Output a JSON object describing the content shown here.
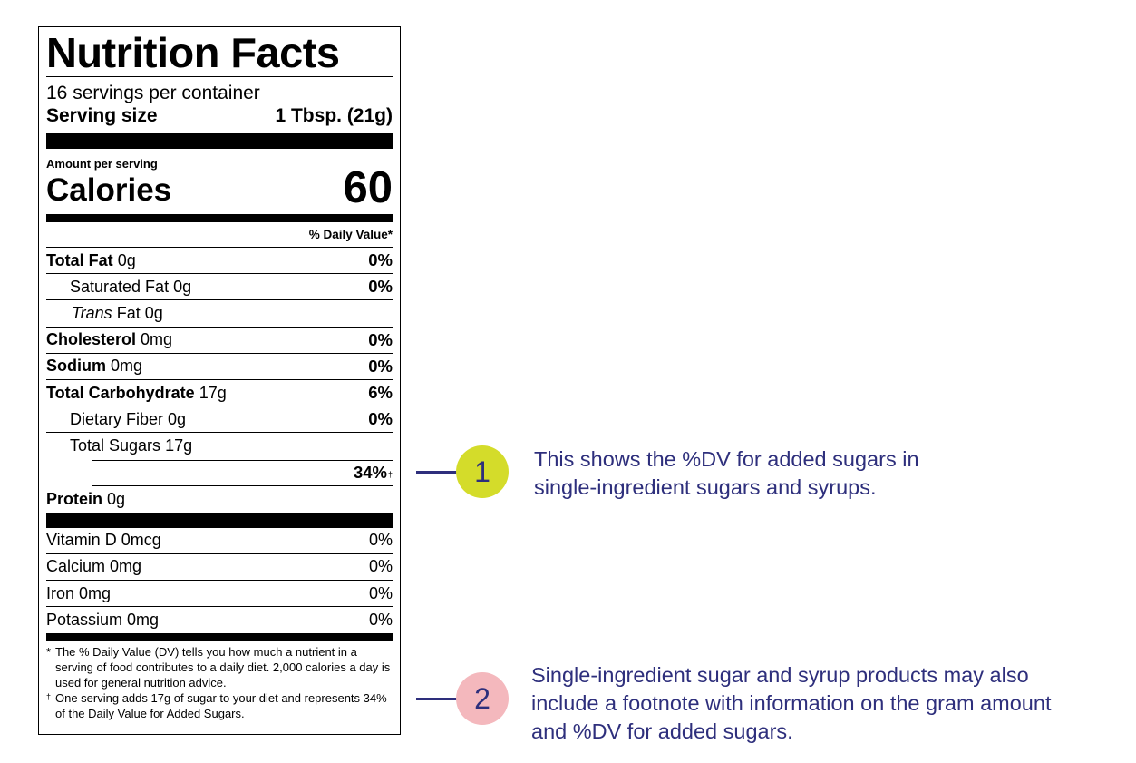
{
  "label": {
    "title": "Nutrition Facts",
    "servings_per_container": "16 servings per container",
    "serving_size_label": "Serving size",
    "serving_size_value": "1 Tbsp. (21g)",
    "amount_per_serving": "Amount per serving",
    "calories_label": "Calories",
    "calories_value": "60",
    "dv_header": "% Daily Value*",
    "nutrients": [
      {
        "name": "Total Fat",
        "amount": "0g",
        "dv": "0%"
      },
      {
        "name": "Saturated Fat",
        "amount": "0g",
        "dv": "0%"
      },
      {
        "name_italic": "Trans",
        "name": "Fat",
        "amount": "0g"
      },
      {
        "name": "Cholesterol",
        "amount": "0mg",
        "dv": "0%"
      },
      {
        "name": "Sodium",
        "amount": "0mg",
        "dv": "0%"
      },
      {
        "name": "Total Carbohydrate",
        "amount": "17g",
        "dv": "6%"
      },
      {
        "name": "Dietary Fiber",
        "amount": "0g",
        "dv": "0%"
      },
      {
        "name": "Total Sugars",
        "amount": "17g"
      },
      {
        "name": "Protein",
        "amount": "0g"
      }
    ],
    "added_sugars_dv": "34%",
    "added_sugars_mark": "†",
    "vitamins": [
      {
        "text": "Vitamin D 0mcg",
        "dv": "0%"
      },
      {
        "text": "Calcium 0mg",
        "dv": "0%"
      },
      {
        "text": "Iron 0mg",
        "dv": "0%"
      },
      {
        "text": "Potassium 0mg",
        "dv": "0%"
      }
    ],
    "footnote_star_mark": "*",
    "footnote_star": "The % Daily Value (DV) tells you how much a nutrient in a serving of food contributes to a daily diet. 2,000 calories a day is used for general nutrition advice.",
    "footnote_dagger_mark": "†",
    "footnote_dagger": "One serving adds 17g of sugar to your diet and represents 34% of the Daily Value for Added Sugars."
  },
  "callouts": [
    {
      "number": "1",
      "color": "#d4dc2a",
      "line1": "This shows the %DV for added sugars in",
      "line2": "single-ingredient sugars and syrups."
    },
    {
      "number": "2",
      "color": "#f4b8bd",
      "line1": "Single-ingredient sugar and syrup products may also",
      "line2": "include a footnote with information on the gram amount",
      "line3": "and %DV for added sugars."
    }
  ],
  "colors": {
    "callout_text": "#2e2f7c",
    "connector": "#2e2f7c"
  }
}
